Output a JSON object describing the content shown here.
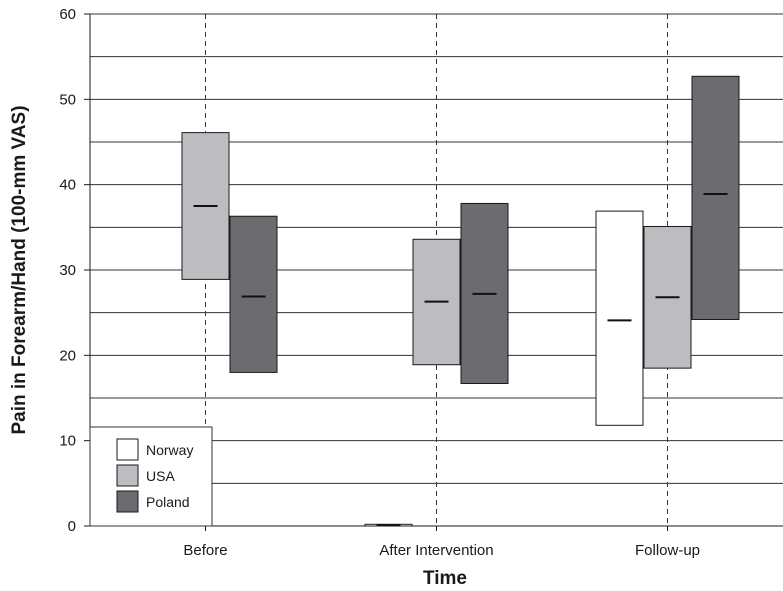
{
  "chart_data": {
    "type": "box",
    "xlabel": "Time",
    "ylabel": "Pain in Forearm/Hand (100-mm VAS)",
    "ylim": [
      0,
      60
    ],
    "yticks": [
      0,
      10,
      20,
      30,
      40,
      50,
      60
    ],
    "gridlines_y": [
      5,
      10,
      15,
      20,
      25,
      30,
      35,
      40,
      45,
      50,
      55,
      60
    ],
    "categories": [
      "Before",
      "After Intervention",
      "Follow-up"
    ],
    "legend_position": "bottom-left",
    "series": [
      {
        "name": "Norway",
        "color": "#ffffff",
        "boxes": [
          null,
          {
            "low": 0,
            "high": 0.2,
            "median": 0.1
          },
          {
            "low": 11.8,
            "high": 36.9,
            "median": 24.1
          }
        ]
      },
      {
        "name": "USA",
        "color": "#bcbdc0",
        "boxes": [
          {
            "low": 28.9,
            "high": 46.1,
            "median": 37.5
          },
          {
            "low": 18.9,
            "high": 33.6,
            "median": 26.3
          },
          {
            "low": 18.5,
            "high": 35.1,
            "median": 26.8
          }
        ]
      },
      {
        "name": "Poland",
        "color": "#6b6c70",
        "boxes": [
          {
            "low": 18.0,
            "high": 36.3,
            "median": 26.9
          },
          {
            "low": 16.7,
            "high": 37.8,
            "median": 27.2
          },
          {
            "low": 24.2,
            "high": 52.7,
            "median": 38.9
          }
        ]
      }
    ]
  }
}
